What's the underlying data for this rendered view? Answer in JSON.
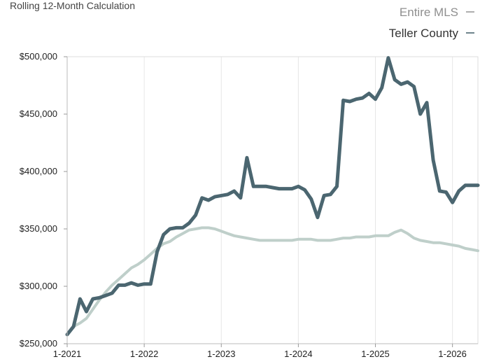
{
  "chart_data": {
    "type": "line",
    "title": "Rolling 12-Month Calculation",
    "xlabel": "",
    "ylabel": "",
    "xlim": [
      2021.0,
      2026.33
    ],
    "ylim": [
      250000,
      500000
    ],
    "y_ticks": [
      250000,
      300000,
      350000,
      400000,
      450000,
      500000
    ],
    "y_tick_labels": [
      "$250,000",
      "$300,000",
      "$350,000",
      "$400,000",
      "$450,000",
      "$500,000"
    ],
    "x_ticks": [
      2021,
      2022,
      2023,
      2024,
      2025,
      2026
    ],
    "x_tick_labels": [
      "1-2021",
      "1-2022",
      "1-2023",
      "1-2024",
      "1-2025",
      "1-2026"
    ],
    "legend_position": "top-right",
    "grid": "vertical",
    "series": [
      {
        "name": "Entire MLS",
        "color": "#bfcfca",
        "x": [
          2021.0,
          2021.083,
          2021.167,
          2021.25,
          2021.333,
          2021.417,
          2021.5,
          2021.583,
          2021.667,
          2021.75,
          2021.833,
          2021.917,
          2022.0,
          2022.083,
          2022.167,
          2022.25,
          2022.333,
          2022.417,
          2022.5,
          2022.583,
          2022.667,
          2022.75,
          2022.833,
          2022.917,
          2023.0,
          2023.083,
          2023.167,
          2023.25,
          2023.333,
          2023.417,
          2023.5,
          2023.583,
          2023.667,
          2023.75,
          2023.833,
          2023.917,
          2024.0,
          2024.083,
          2024.167,
          2024.25,
          2024.333,
          2024.417,
          2024.5,
          2024.583,
          2024.667,
          2024.75,
          2024.833,
          2024.917,
          2025.0,
          2025.083,
          2025.167,
          2025.25,
          2025.333,
          2025.417,
          2025.5,
          2025.583,
          2025.667,
          2025.75,
          2025.833,
          2025.917,
          2026.0,
          2026.083,
          2026.167,
          2026.25,
          2026.33
        ],
        "values": [
          258000,
          265000,
          268000,
          272000,
          280000,
          288000,
          295000,
          301000,
          306000,
          311000,
          316000,
          319000,
          323000,
          328000,
          333000,
          337000,
          339000,
          343000,
          346000,
          349000,
          350000,
          351000,
          351000,
          350000,
          348000,
          346000,
          344000,
          343000,
          342000,
          341000,
          340000,
          340000,
          340000,
          340000,
          340000,
          340000,
          341000,
          341000,
          341000,
          340000,
          340000,
          340000,
          341000,
          342000,
          342000,
          343000,
          343000,
          343000,
          344000,
          344000,
          344000,
          347000,
          349000,
          346000,
          342000,
          340000,
          339000,
          338000,
          338000,
          337000,
          336000,
          335000,
          333000,
          332000,
          331000
        ]
      },
      {
        "name": "Teller County",
        "color": "#4b6670",
        "x": [
          2021.0,
          2021.083,
          2021.167,
          2021.25,
          2021.333,
          2021.417,
          2021.5,
          2021.583,
          2021.667,
          2021.75,
          2021.833,
          2021.917,
          2022.0,
          2022.083,
          2022.167,
          2022.25,
          2022.333,
          2022.417,
          2022.5,
          2022.583,
          2022.667,
          2022.75,
          2022.833,
          2022.917,
          2023.0,
          2023.083,
          2023.167,
          2023.25,
          2023.333,
          2023.417,
          2023.5,
          2023.583,
          2023.667,
          2023.75,
          2023.833,
          2023.917,
          2024.0,
          2024.083,
          2024.167,
          2024.25,
          2024.333,
          2024.417,
          2024.5,
          2024.583,
          2024.667,
          2024.75,
          2024.833,
          2024.917,
          2025.0,
          2025.083,
          2025.167,
          2025.25,
          2025.333,
          2025.417,
          2025.5,
          2025.583,
          2025.667,
          2025.75,
          2025.833,
          2025.917,
          2026.0,
          2026.083,
          2026.167,
          2026.25,
          2026.33
        ],
        "values": [
          258000,
          265000,
          289000,
          278000,
          289000,
          290000,
          292000,
          294000,
          301000,
          301000,
          303000,
          301000,
          302000,
          302000,
          330000,
          345000,
          350000,
          351000,
          351000,
          355000,
          362000,
          377000,
          375000,
          378000,
          379000,
          380000,
          383000,
          377000,
          412000,
          387000,
          387000,
          387000,
          386000,
          385000,
          385000,
          385000,
          387000,
          384000,
          376000,
          360000,
          379000,
          380000,
          387000,
          462000,
          461000,
          463000,
          464000,
          468000,
          463000,
          473000,
          499000,
          480000,
          476000,
          478000,
          474000,
          450000,
          460000,
          410000,
          383000,
          382000,
          373000,
          383000,
          388000,
          388000,
          388000
        ]
      }
    ]
  }
}
